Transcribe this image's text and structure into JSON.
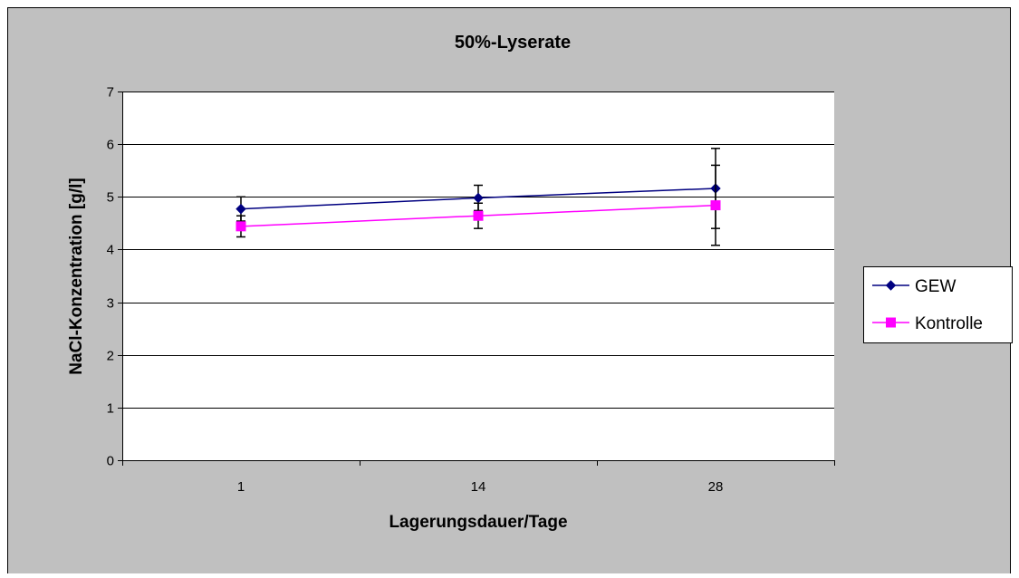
{
  "chart_data": {
    "type": "line",
    "title": "50%-Lyserate",
    "xlabel": "Lagerungsdauer/Tage",
    "ylabel": "NaCl-Konzentration  [g/l]",
    "categories": [
      "1",
      "14",
      "28"
    ],
    "ylim": [
      0,
      7
    ],
    "yticks": [
      "0",
      "1",
      "2",
      "3",
      "4",
      "5",
      "6",
      "7"
    ],
    "grid": "horizontal",
    "legend_position": "right",
    "series": [
      {
        "name": "GEW",
        "values": [
          4.77,
          4.98,
          5.16
        ],
        "error": [
          0.23,
          0.24,
          0.76
        ],
        "color": "#000080",
        "marker": "diamond"
      },
      {
        "name": "Kontrolle",
        "values": [
          4.44,
          4.64,
          4.84
        ],
        "error": [
          0.2,
          0.24,
          0.76
        ],
        "color": "#FF00FF",
        "marker": "square"
      }
    ],
    "colors": {
      "background": "#C0C0C0",
      "plot_area": "#FFFFFF",
      "gridline": "#000000",
      "error_bar": "#000000"
    }
  }
}
